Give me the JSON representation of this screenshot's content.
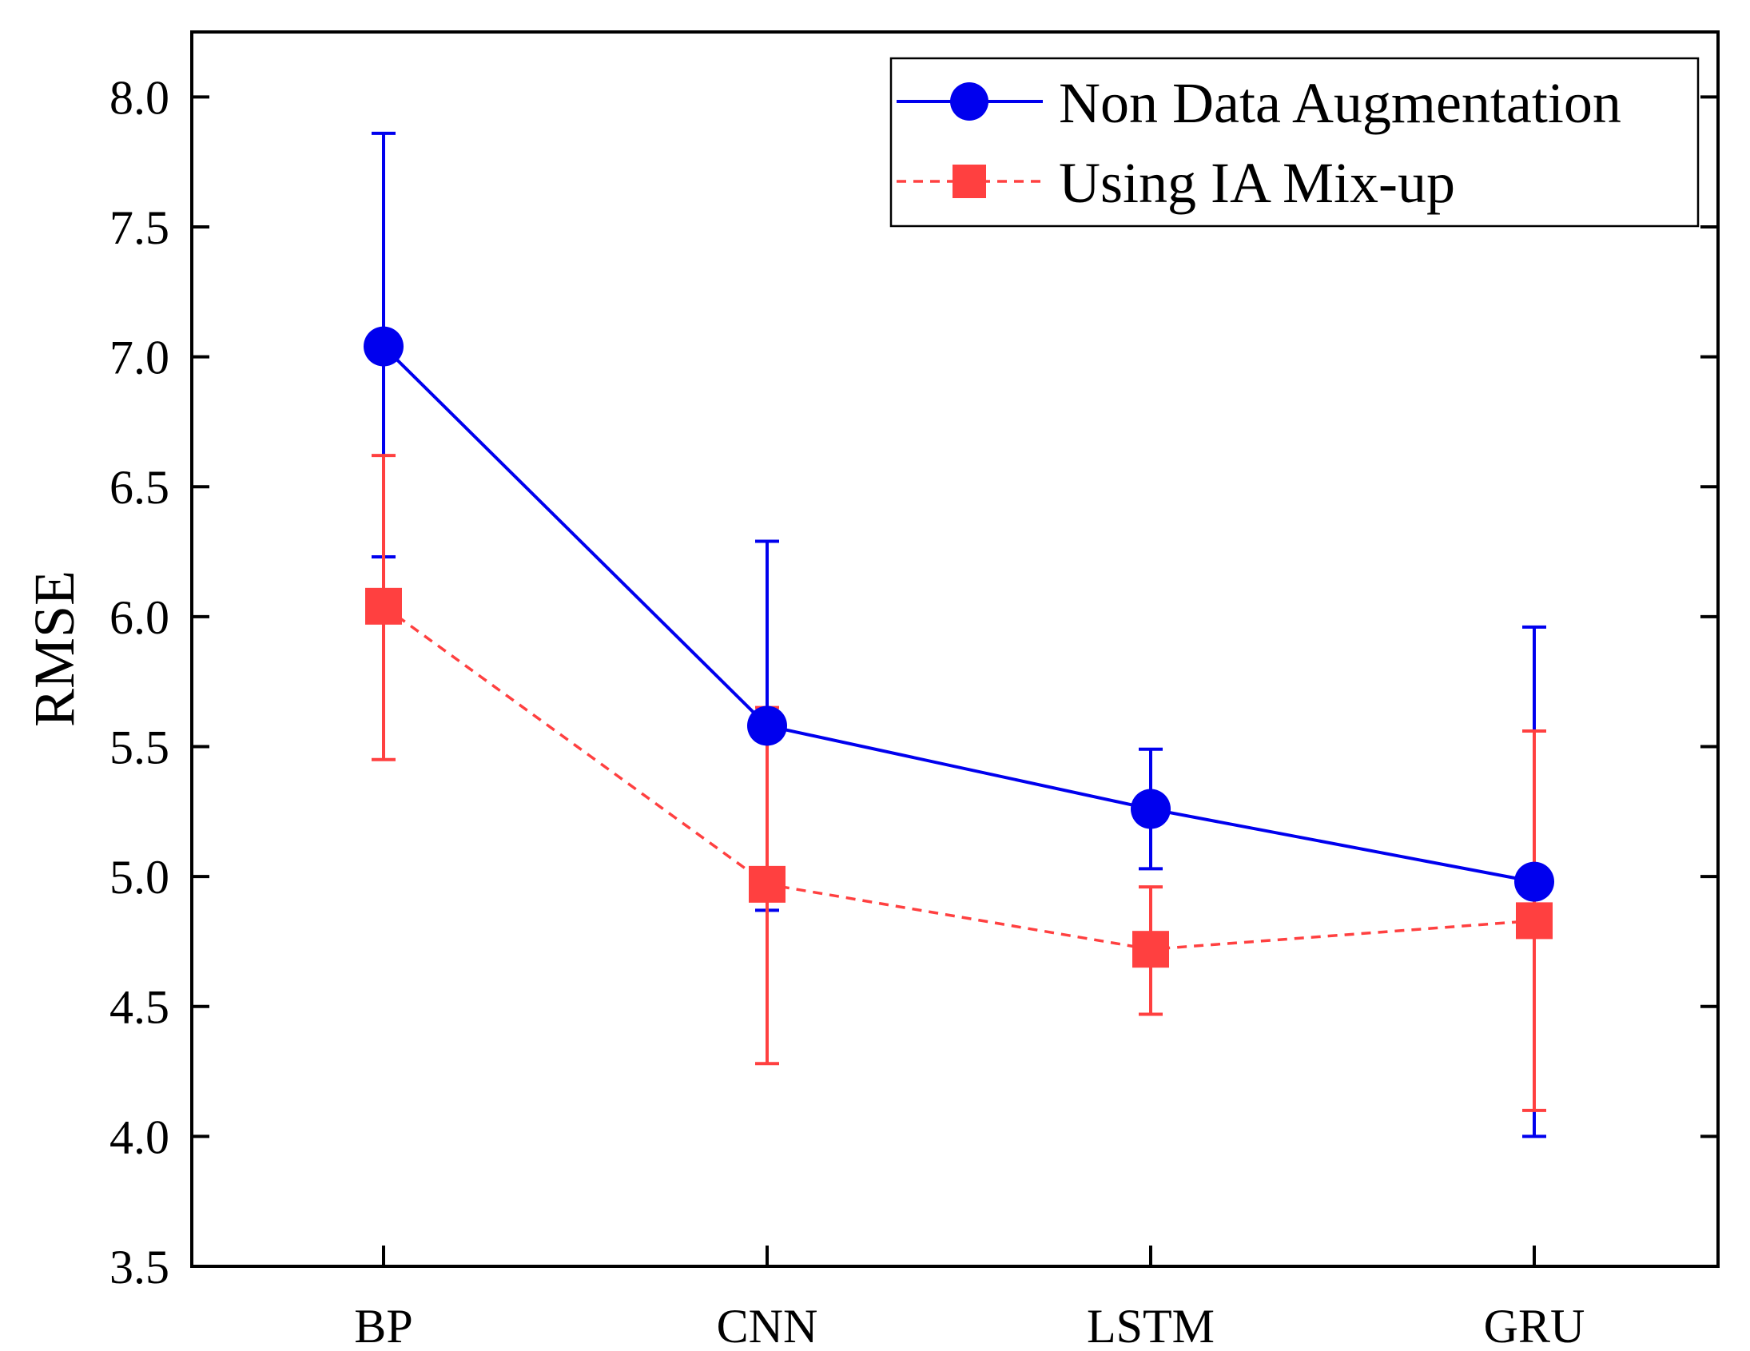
{
  "chart_data": {
    "type": "line",
    "title": "",
    "xlabel": "",
    "ylabel": "RMSE",
    "categories": [
      "BP",
      "CNN",
      "LSTM",
      "GRU"
    ],
    "ylim": [
      3.5,
      8.25
    ],
    "yticks": [
      3.5,
      4.0,
      4.5,
      5.0,
      5.5,
      6.0,
      6.5,
      7.0,
      7.5,
      8.0
    ],
    "ytick_labels": [
      "3.5",
      "4.0",
      "4.5",
      "5.0",
      "5.5",
      "6.0",
      "6.5",
      "7.0",
      "7.5",
      "8.0"
    ],
    "grid": false,
    "legend_position": "top-right",
    "series": [
      {
        "name": "Non Data Augmentation",
        "color": "#0000ee",
        "marker": "circle",
        "line_style": "solid",
        "values": [
          7.04,
          5.58,
          5.26,
          4.98
        ],
        "err_low": [
          6.23,
          4.87,
          5.03,
          4.0
        ],
        "err_high": [
          7.86,
          6.29,
          5.49,
          5.96
        ]
      },
      {
        "name": "Using IA Mix-up",
        "color": "#ff4040",
        "marker": "square",
        "line_style": "dashed",
        "values": [
          6.04,
          4.97,
          4.72,
          4.83
        ],
        "err_low": [
          5.45,
          4.28,
          4.47,
          4.1
        ],
        "err_high": [
          6.62,
          5.65,
          4.96,
          5.56
        ]
      }
    ]
  }
}
